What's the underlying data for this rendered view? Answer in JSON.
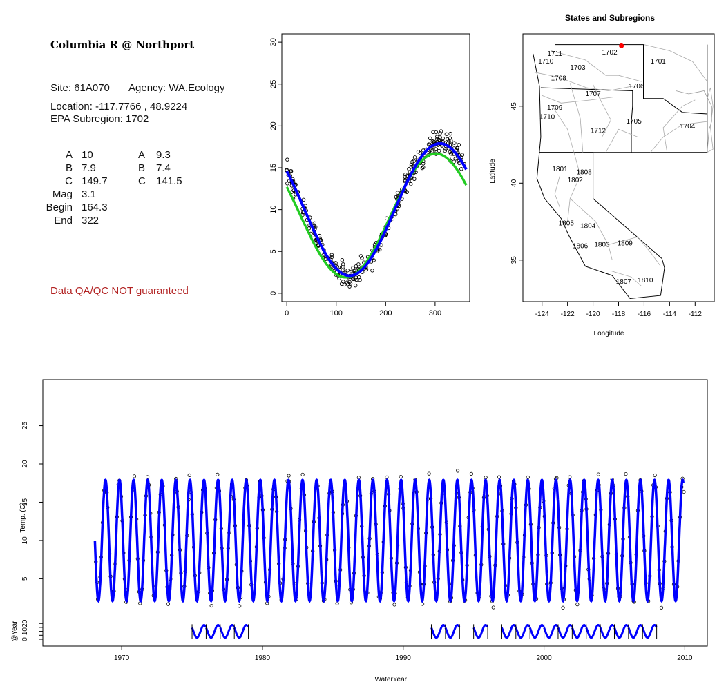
{
  "site": {
    "title": "Columbia R @ Northport",
    "site_line": "Site: 61A070",
    "agency_line": "Agency: WA.Ecology",
    "location_line": "Location: -117.7766 , 48.9224",
    "subregion_line": "EPA Subregion: 1702",
    "params": [
      {
        "name": "A",
        "val1": "10",
        "val2": "9.3"
      },
      {
        "name": "B",
        "val1": "7.9",
        "val2": "7.4"
      },
      {
        "name": "C",
        "val1": "149.7",
        "val2": "141.5"
      },
      {
        "name": "Mag",
        "val1": "3.1",
        "val2": ""
      },
      {
        "name": "Begin",
        "val1": "164.3",
        "val2": ""
      },
      {
        "name": "End",
        "val1": "322",
        "val2": ""
      }
    ],
    "warning": "Data QA/QC NOT guaranteed"
  },
  "colors": {
    "fit_blue": "#0000ff",
    "fit_green": "#22cc22",
    "site_marker": "#ff0000",
    "warning": "#b22222"
  },
  "chart_data": [
    {
      "type": "scatter",
      "panel": "seasonal",
      "title": "",
      "xlabel": "",
      "ylabel": "",
      "xlim": [
        -10,
        370
      ],
      "ylim": [
        -1,
        31
      ],
      "xticks": [
        0,
        100,
        200,
        300
      ],
      "yticks": [
        0,
        5,
        10,
        15,
        20,
        25,
        30
      ],
      "series": [
        {
          "kind": "points",
          "model": {
            "a": 10,
            "b": 7.9,
            "c": 149.7
          }
        },
        {
          "kind": "line",
          "color": "green",
          "model": {
            "a": 9.3,
            "b": 7.4,
            "c": 141.5
          }
        },
        {
          "kind": "line",
          "color": "blue",
          "model": {
            "a": 10,
            "b": 7.9,
            "c": 149.7
          }
        }
      ]
    },
    {
      "type": "map",
      "panel": "map",
      "title": "States and Subregions",
      "xlabel": "Longitude",
      "ylabel": "Latitude",
      "xlim": [
        -125.5,
        -110.5
      ],
      "ylim": [
        32.3,
        49.7
      ],
      "xticks": [
        -124,
        -122,
        -120,
        -118,
        -116,
        -114,
        -112
      ],
      "yticks": [
        35,
        40,
        45
      ],
      "site_marker": {
        "lon": -117.7766,
        "lat": 48.9224
      },
      "region_labels": [
        {
          "label": "1711",
          "lon": -123.0,
          "lat": 48.4
        },
        {
          "label": "1710",
          "lon": -123.7,
          "lat": 47.9
        },
        {
          "label": "1702",
          "lon": -118.7,
          "lat": 48.5
        },
        {
          "label": "1701",
          "lon": -114.9,
          "lat": 47.9
        },
        {
          "label": "1703",
          "lon": -121.2,
          "lat": 47.5
        },
        {
          "label": "1708",
          "lon": -122.7,
          "lat": 46.8
        },
        {
          "label": "1706",
          "lon": -116.6,
          "lat": 46.3
        },
        {
          "label": "1707",
          "lon": -120.0,
          "lat": 45.8
        },
        {
          "label": "1709",
          "lon": -123.0,
          "lat": 44.9
        },
        {
          "label": "1710",
          "lon": -123.6,
          "lat": 44.3
        },
        {
          "label": "1705",
          "lon": -116.8,
          "lat": 44.0
        },
        {
          "label": "1704",
          "lon": -112.6,
          "lat": 43.7
        },
        {
          "label": "1712",
          "lon": -119.6,
          "lat": 43.4
        },
        {
          "label": "1801",
          "lon": -122.6,
          "lat": 40.9
        },
        {
          "label": "1808",
          "lon": -120.7,
          "lat": 40.7
        },
        {
          "label": "1802",
          "lon": -121.4,
          "lat": 40.2
        },
        {
          "label": "1805",
          "lon": -122.1,
          "lat": 37.4
        },
        {
          "label": "1804",
          "lon": -120.4,
          "lat": 37.2
        },
        {
          "label": "1806",
          "lon": -121.0,
          "lat": 35.9
        },
        {
          "label": "1803",
          "lon": -119.3,
          "lat": 36.0
        },
        {
          "label": "1809",
          "lon": -117.5,
          "lat": 36.1
        },
        {
          "label": "1807",
          "lon": -117.6,
          "lat": 33.6
        },
        {
          "label": "1810",
          "lon": -115.9,
          "lat": 33.7
        }
      ]
    },
    {
      "type": "line",
      "panel": "timeseries",
      "title": "",
      "xlabel": "WaterYear",
      "ylabel": "Temp. (C)",
      "ylabel2": "@Year",
      "xlim": [
        1964.4,
        2011.6
      ],
      "ylim": [
        -3.8,
        31
      ],
      "xticks": [
        1970,
        1980,
        1990,
        2000,
        2010
      ],
      "yticks": [
        5,
        10,
        15,
        20,
        25
      ],
      "yticks2": [
        0,
        5,
        10,
        15,
        20
      ],
      "series": [
        {
          "name": "",
          "kind": "continuous fit",
          "range": [
            1968.1,
            2009.9
          ],
          "model": {
            "a": 10,
            "b": 7.9,
            "c": 149.7
          }
        },
        {
          "name": "",
          "kind": "annual fits",
          "segments": [
            [
              1975,
              1979
            ],
            [
              1992,
              1994
            ],
            [
              1995,
              1996
            ],
            [
              1997,
              2008
            ]
          ]
        }
      ]
    }
  ]
}
